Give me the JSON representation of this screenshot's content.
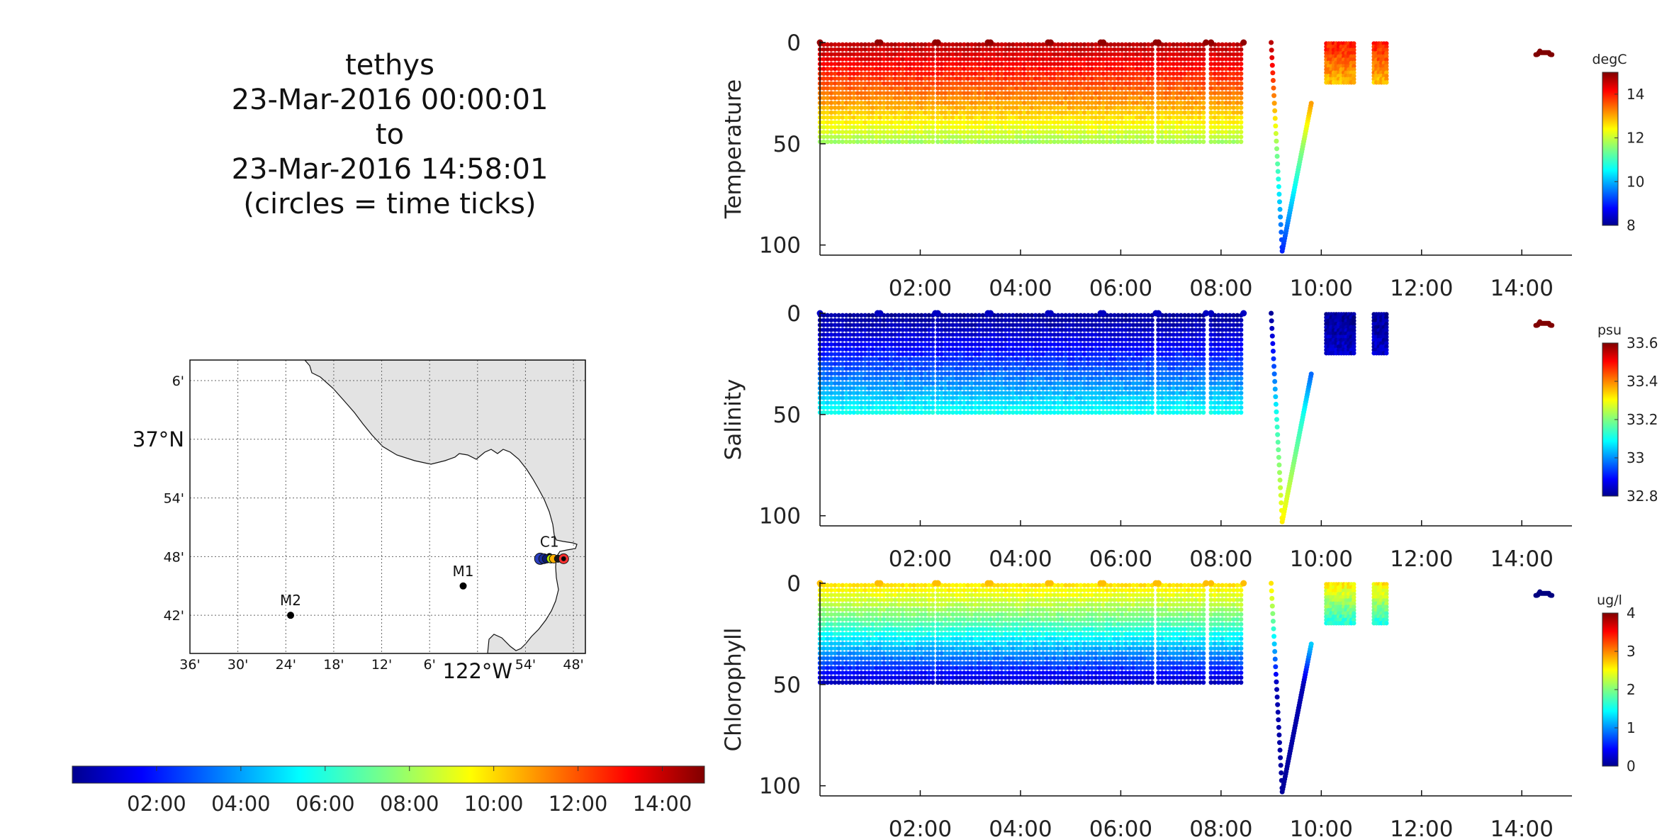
{
  "title": {
    "vehicle": "tethys",
    "start": "23-Mar-2016 00:00:01",
    "to": "to",
    "end": "23-Mar-2016 14:58:01",
    "note": "(circles = time ticks)"
  },
  "map": {
    "lat_ticks": [
      "6'",
      "37°N",
      "54'",
      "48'",
      "42'"
    ],
    "lon_ticks": [
      "36'",
      "30'",
      "24'",
      "18'",
      "12'",
      "6'",
      "122°W",
      "54'",
      "48'"
    ],
    "stations": [
      {
        "name": "M2",
        "lon": -122.39,
        "lat": 36.7
      },
      {
        "name": "M1",
        "lon": -122.03,
        "lat": 36.75
      },
      {
        "name": "C1",
        "lon": -121.85,
        "lat": 36.8
      }
    ],
    "land_color": "#e3e3e3"
  },
  "time_colorbar": {
    "ticks": [
      "02:00",
      "04:00",
      "06:00",
      "08:00",
      "10:00",
      "12:00",
      "14:00"
    ],
    "range_hours": [
      0,
      15
    ]
  },
  "chart_data": [
    {
      "type": "scatter",
      "ylabel": "Temperature",
      "units": "degC",
      "cbar_ticks": [
        "8",
        "10",
        "12",
        "14"
      ],
      "clim": [
        8,
        15
      ],
      "ylim": [
        105,
        0
      ],
      "yticks": [
        "0",
        "50",
        "100"
      ],
      "xticks": [
        "02:00",
        "04:00",
        "06:00",
        "08:00",
        "10:00",
        "12:00",
        "14:00"
      ],
      "xlim_hours": [
        0,
        15
      ],
      "profile": {
        "surface": 14.6,
        "bottom": 11.7,
        "deep": 9.0
      },
      "segment_values": {
        "yo-yo_end": 12.2,
        "short_yoyo": 14.0,
        "final": 15.0
      }
    },
    {
      "type": "scatter",
      "ylabel": "Salinity",
      "units": "psu",
      "cbar_ticks": [
        "32.8",
        "33",
        "33.2",
        "33.4",
        "33.6"
      ],
      "clim": [
        32.8,
        33.6
      ],
      "ylim": [
        105,
        0
      ],
      "yticks": [
        "0",
        "50",
        "100"
      ],
      "xticks": [
        "02:00",
        "04:00",
        "06:00",
        "08:00",
        "10:00",
        "12:00",
        "14:00"
      ],
      "xlim_hours": [
        0,
        15
      ],
      "profile": {
        "surface": 32.82,
        "bottom": 33.12,
        "deep": 33.32
      },
      "segment_values": {
        "yo-yo_end": 33.12,
        "short_yoyo": 32.82,
        "final": 33.6
      }
    },
    {
      "type": "scatter",
      "ylabel": "Chlorophyll",
      "units": "ug/l",
      "cbar_ticks": [
        "0",
        "1",
        "2",
        "3",
        "4"
      ],
      "clim": [
        0,
        4
      ],
      "ylim": [
        105,
        0
      ],
      "yticks": [
        "0",
        "50",
        "100"
      ],
      "xticks": [
        "02:00",
        "04:00",
        "06:00",
        "08:00",
        "10:00",
        "12:00",
        "14:00"
      ],
      "xlim_hours": [
        0,
        15
      ],
      "profile": {
        "surface": 2.6,
        "bottom": 0.2,
        "deep": 0.1
      },
      "segment_values": {
        "yo-yo_end": 0.1,
        "short_yoyo": 2.6,
        "final": 0.0
      }
    }
  ]
}
